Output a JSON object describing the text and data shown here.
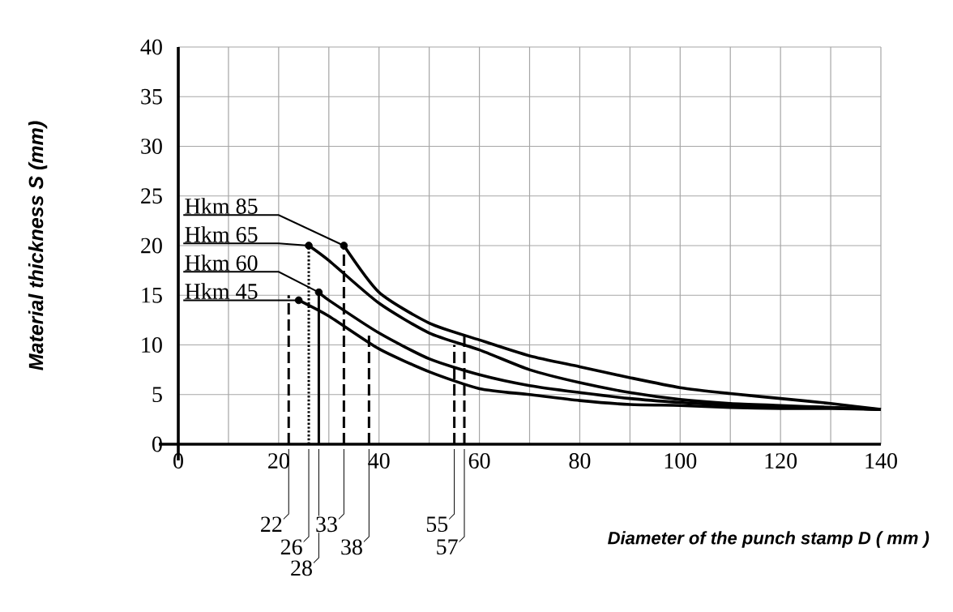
{
  "chart_data": {
    "type": "line",
    "xlabel": "Diameter of the punch stamp D ( mm )",
    "ylabel": "Material thickness S (mm)",
    "xlim": [
      0,
      140
    ],
    "ylim": [
      0,
      40
    ],
    "xticks": [
      0,
      {
        "value": 10,
        "label": null
      },
      20,
      {
        "value": 30,
        "label": null
      },
      40,
      {
        "value": 50,
        "label": null
      },
      60,
      {
        "value": 70,
        "label": null
      },
      80,
      {
        "value": 90,
        "label": null
      },
      100,
      {
        "value": 110,
        "label": null
      },
      120,
      {
        "value": 130,
        "label": null
      },
      140
    ],
    "yticks": [
      0,
      5,
      10,
      15,
      20,
      25,
      30,
      35,
      40
    ],
    "grid": true,
    "series": [
      {
        "name": "Hkm 45",
        "color": "#000000",
        "x": [
          24,
          30,
          40,
          50,
          60,
          70,
          80,
          90,
          100,
          110,
          120,
          130,
          140
        ],
        "values": [
          14.5,
          12.9,
          9.6,
          7.3,
          5.6,
          5.0,
          4.4,
          4.0,
          3.9,
          3.7,
          3.6,
          3.6,
          3.5
        ]
      },
      {
        "name": "Hkm 60",
        "color": "#000000",
        "x": [
          28,
          30,
          40,
          50,
          60,
          70,
          80,
          90,
          100,
          110,
          120,
          130,
          140
        ],
        "values": [
          15.3,
          14.5,
          11.2,
          8.6,
          7.0,
          5.9,
          5.2,
          4.6,
          4.2,
          3.9,
          3.8,
          3.7,
          3.5
        ]
      },
      {
        "name": "Hkm 65",
        "color": "#000000",
        "x": [
          26,
          30,
          40,
          50,
          60,
          70,
          80,
          90,
          100,
          110,
          120,
          130,
          140
        ],
        "values": [
          20,
          18.5,
          14.2,
          11.2,
          9.5,
          7.5,
          6.2,
          5.2,
          4.5,
          4.1,
          3.9,
          3.7,
          3.5
        ]
      },
      {
        "name": "Hkm 85",
        "color": "#000000",
        "x": [
          33,
          40,
          50,
          60,
          70,
          80,
          90,
          100,
          110,
          120,
          130,
          140
        ],
        "values": [
          20,
          15.3,
          12.2,
          10.5,
          8.9,
          7.8,
          6.7,
          5.7,
          5.1,
          4.6,
          4.1,
          3.5
        ]
      },
      {
        "type": "scatter",
        "color": "#000000",
        "marker": "circle",
        "x": [
          24,
          28,
          26,
          33
        ],
        "values": [
          14.5,
          15.3,
          20,
          20
        ]
      },
      {
        "name": "22",
        "color": "#000000",
        "line_style": "dashed",
        "x": [
          22,
          22
        ],
        "values": [
          0,
          15
        ]
      },
      {
        "name": "26",
        "color": "#000000",
        "line_style": "dotted",
        "x": [
          26,
          26
        ],
        "values": [
          0,
          20
        ]
      },
      {
        "name": "28",
        "color": "#000000",
        "line_style": "solid",
        "x": [
          28,
          28
        ],
        "values": [
          0,
          15.3
        ]
      },
      {
        "name": "33",
        "color": "#000000",
        "line_style": "dashed",
        "x": [
          33,
          33
        ],
        "values": [
          0,
          20
        ]
      },
      {
        "name": "38",
        "color": "#000000",
        "line_style": "dashed",
        "x": [
          38,
          38
        ],
        "values": [
          0,
          11
        ]
      },
      {
        "name": "55",
        "color": "#000000",
        "line_style": "dashed",
        "x": [
          55,
          55
        ],
        "values": [
          0,
          10
        ]
      },
      {
        "name": "57",
        "color": "#000000",
        "line_style": "dashed",
        "x": [
          57,
          57
        ],
        "values": [
          0,
          11
        ]
      }
    ]
  }
}
